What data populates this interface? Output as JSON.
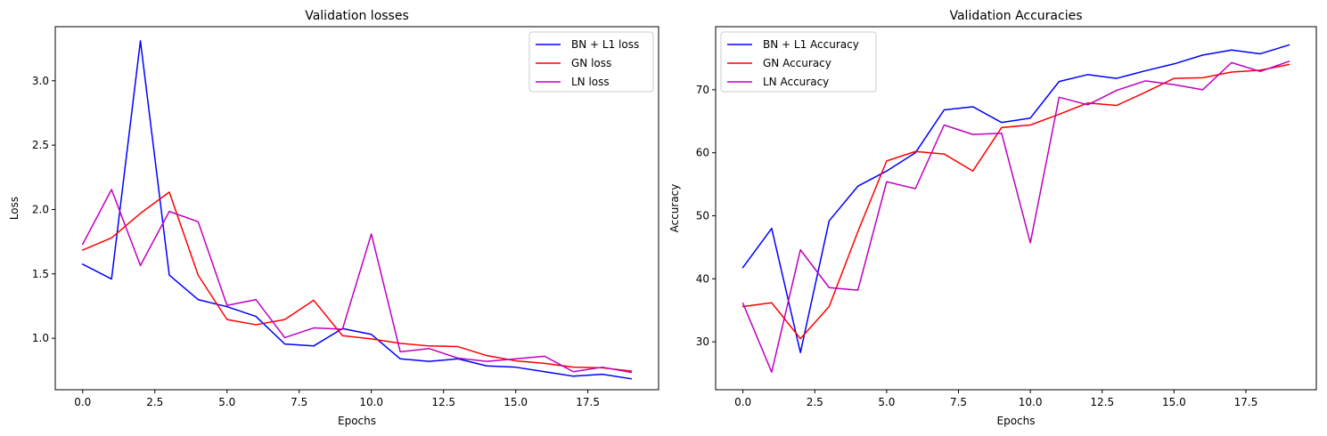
{
  "chart_data": [
    {
      "type": "line",
      "title": "Validation losses",
      "xlabel": "Epochs",
      "ylabel": "Loss",
      "x": [
        0,
        1,
        2,
        3,
        4,
        5,
        6,
        7,
        8,
        9,
        10,
        11,
        12,
        13,
        14,
        15,
        16,
        17,
        18,
        19
      ],
      "xlim": [
        -0.95,
        19.95
      ],
      "ylim": [
        0.6,
        3.42
      ],
      "xticks": [
        0,
        2.5,
        5,
        7.5,
        10,
        12.5,
        15,
        17.5
      ],
      "xtick_labels": [
        "0.0",
        "2.5",
        "5.0",
        "7.5",
        "10.0",
        "12.5",
        "15.0",
        "17.5"
      ],
      "yticks": [
        1.0,
        1.5,
        2.0,
        2.5,
        3.0
      ],
      "ytick_labels": [
        "1.0",
        "1.5",
        "2.0",
        "2.5",
        "3.0"
      ],
      "legend_position": "upper right",
      "grid": false,
      "series": [
        {
          "name": "BN + L1 loss",
          "color": "#0000ff",
          "values": [
            1.575,
            1.46,
            3.31,
            1.49,
            1.3,
            1.245,
            1.17,
            0.955,
            0.94,
            1.075,
            1.03,
            0.84,
            0.82,
            0.84,
            0.785,
            0.775,
            0.74,
            0.705,
            0.72,
            0.685
          ]
        },
        {
          "name": "GN loss",
          "color": "#ff0000",
          "values": [
            1.685,
            1.78,
            1.97,
            2.135,
            1.49,
            1.145,
            1.105,
            1.145,
            1.295,
            1.02,
            0.995,
            0.96,
            0.94,
            0.935,
            0.865,
            0.825,
            0.805,
            0.775,
            0.77,
            0.745
          ]
        },
        {
          "name": "LN loss",
          "color": "#bf00bf",
          "values": [
            1.73,
            2.155,
            1.565,
            1.985,
            1.905,
            1.255,
            1.3,
            1.005,
            1.08,
            1.07,
            1.81,
            0.895,
            0.92,
            0.845,
            0.82,
            0.84,
            0.86,
            0.74,
            0.775,
            0.735
          ]
        }
      ]
    },
    {
      "type": "line",
      "title": "Validation Accuracies",
      "xlabel": "Epochs",
      "ylabel": "Accuracy",
      "x": [
        0,
        1,
        2,
        3,
        4,
        5,
        6,
        7,
        8,
        9,
        10,
        11,
        12,
        13,
        14,
        15,
        16,
        17,
        18,
        19
      ],
      "xlim": [
        -0.95,
        19.95
      ],
      "ylim": [
        22.4,
        80.0
      ],
      "xticks": [
        0,
        2.5,
        5,
        7.5,
        10,
        12.5,
        15,
        17.5
      ],
      "xtick_labels": [
        "0.0",
        "2.5",
        "5.0",
        "7.5",
        "10.0",
        "12.5",
        "15.0",
        "17.5"
      ],
      "yticks": [
        30,
        40,
        50,
        60,
        70
      ],
      "ytick_labels": [
        "30",
        "40",
        "50",
        "60",
        "70"
      ],
      "legend_position": "upper left",
      "grid": false,
      "series": [
        {
          "name": "BN + L1 Accuracy",
          "color": "#0000ff",
          "values": [
            41.8,
            48.0,
            28.3,
            49.2,
            54.7,
            57.1,
            60.0,
            66.8,
            67.3,
            64.8,
            65.5,
            71.3,
            72.4,
            71.8,
            73.0,
            74.1,
            75.5,
            76.3,
            75.7,
            77.1
          ]
        },
        {
          "name": "GN Accuracy",
          "color": "#ff0000",
          "values": [
            35.6,
            36.2,
            30.5,
            35.6,
            47.5,
            58.7,
            60.2,
            59.8,
            57.1,
            64.0,
            64.4,
            66.1,
            67.9,
            67.5,
            69.6,
            71.8,
            71.9,
            72.8,
            73.1,
            74.0
          ]
        },
        {
          "name": "LN Accuracy",
          "color": "#bf00bf",
          "values": [
            36.1,
            25.2,
            44.6,
            38.6,
            38.2,
            55.4,
            54.3,
            64.4,
            62.9,
            63.1,
            45.7,
            68.8,
            67.6,
            69.9,
            71.4,
            70.8,
            70.0,
            74.3,
            72.9,
            74.5
          ]
        }
      ]
    }
  ]
}
